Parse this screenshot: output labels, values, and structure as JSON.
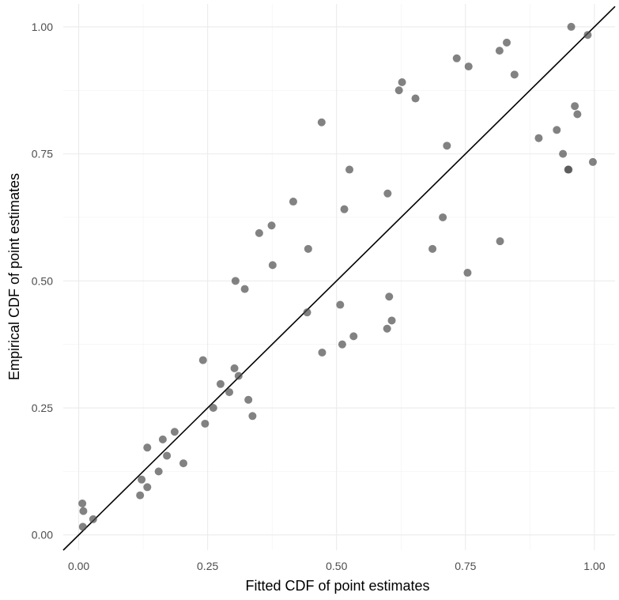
{
  "chart_data": {
    "type": "scatter",
    "xlabel": "Fitted CDF of point estimates",
    "ylabel": "Empirical CDF of point estimates",
    "xlim": [
      -0.03,
      1.04
    ],
    "ylim": [
      -0.03,
      1.045
    ],
    "x_ticks": [
      0,
      0.25,
      0.5,
      0.75,
      1
    ],
    "x_tick_labels": [
      "0.00",
      "0.25",
      "0.50",
      "0.75",
      "1.00"
    ],
    "y_ticks": [
      0,
      0.25,
      0.5,
      0.75,
      1
    ],
    "y_tick_labels": [
      "0.00",
      "0.25",
      "0.50",
      "0.75",
      "1.00"
    ],
    "grid": true,
    "reference_line": {
      "slope": 1,
      "intercept": 0
    },
    "point_color": "#4d4d4d",
    "series": [
      {
        "x": [
          0.007,
          0.009,
          0.008,
          0.028,
          0.119,
          0.122,
          0.133,
          0.133,
          0.155,
          0.163,
          0.171,
          0.186,
          0.203,
          0.241,
          0.245,
          0.261,
          0.275,
          0.292,
          0.302,
          0.304,
          0.31,
          0.322,
          0.329,
          0.337,
          0.35,
          0.374,
          0.376,
          0.416,
          0.443,
          0.445,
          0.471,
          0.472,
          0.507,
          0.511,
          0.515,
          0.525,
          0.533,
          0.598,
          0.599,
          0.602,
          0.607,
          0.621,
          0.627,
          0.653,
          0.686,
          0.706,
          0.714,
          0.733,
          0.754,
          0.756,
          0.816,
          0.817,
          0.83,
          0.845,
          0.892,
          0.927,
          0.939,
          0.949,
          0.955,
          0.962,
          0.967,
          0.987,
          0.997,
          0.95
        ],
        "y": [
          0.062,
          0.047,
          0.016,
          0.031,
          0.078,
          0.109,
          0.172,
          0.094,
          0.125,
          0.188,
          0.156,
          0.203,
          0.141,
          0.344,
          0.219,
          0.25,
          0.297,
          0.281,
          0.328,
          0.5,
          0.313,
          0.484,
          0.266,
          0.234,
          0.594,
          0.609,
          0.531,
          0.656,
          0.438,
          0.563,
          0.812,
          0.359,
          0.453,
          0.375,
          0.641,
          0.719,
          0.391,
          0.406,
          0.672,
          0.469,
          0.422,
          0.875,
          0.891,
          0.859,
          0.563,
          0.625,
          0.766,
          0.938,
          0.516,
          0.922,
          0.953,
          0.578,
          0.969,
          0.906,
          0.781,
          0.797,
          0.75,
          0.719,
          1.0,
          0.844,
          0.828,
          0.984,
          0.734,
          0.719
        ]
      }
    ]
  }
}
